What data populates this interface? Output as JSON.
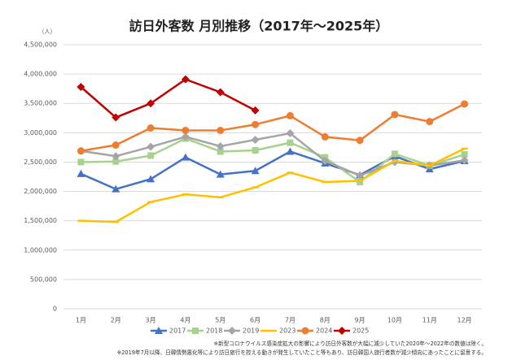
{
  "chart_data": {
    "type": "line",
    "title": "訪日外客数 月別推移（2017年～2025年）",
    "y_label": "（人）",
    "categories": [
      "1月",
      "2月",
      "3月",
      "4月",
      "5月",
      "6月",
      "7月",
      "8月",
      "9月",
      "10月",
      "11月",
      "12月"
    ],
    "series": [
      {
        "name": "2017",
        "color": "#4472c4",
        "marker": "triangle",
        "values": [
          2300000,
          2040000,
          2210000,
          2580000,
          2290000,
          2350000,
          2680000,
          2480000,
          2280000,
          2600000,
          2380000,
          2520000
        ]
      },
      {
        "name": "2018",
        "color": "#a9d18e",
        "marker": "square",
        "values": [
          2500000,
          2510000,
          2610000,
          2900000,
          2680000,
          2700000,
          2830000,
          2580000,
          2160000,
          2640000,
          2440000,
          2630000
        ]
      },
      {
        "name": "2019",
        "color": "#a5a5a5",
        "marker": "diamond",
        "values": [
          2690000,
          2600000,
          2760000,
          2930000,
          2770000,
          2880000,
          2990000,
          2520000,
          2270000,
          2500000,
          2440000,
          2530000
        ]
      },
      {
        "name": "2023",
        "color": "#ffc000",
        "marker": "dash",
        "values": [
          1500000,
          1480000,
          1820000,
          1950000,
          1900000,
          2070000,
          2320000,
          2160000,
          2180000,
          2520000,
          2440000,
          2730000
        ]
      },
      {
        "name": "2024",
        "color": "#ed7d31",
        "marker": "circle",
        "values": [
          2690000,
          2790000,
          3080000,
          3040000,
          3040000,
          3140000,
          3290000,
          2930000,
          2870000,
          3310000,
          3190000,
          3490000
        ]
      },
      {
        "name": "2025",
        "color": "#c00000",
        "marker": "diamond",
        "values": [
          3780000,
          3260000,
          3500000,
          3910000,
          3690000,
          3380000,
          null,
          null,
          null,
          null,
          null,
          null
        ]
      }
    ],
    "ylim": [
      0,
      4500000
    ],
    "yticks": [
      0,
      {
        "value": 500000,
        "label": "500,000"
      },
      {
        "value": 1000000,
        "label": "1,000,000"
      },
      {
        "value": 1500000,
        "label": "1,500,000"
      },
      {
        "value": 2000000,
        "label": "2,000,000"
      },
      {
        "value": 2500000,
        "label": "2,500,000"
      },
      {
        "value": 3000000,
        "label": "3,000,000"
      },
      {
        "value": 3500000,
        "label": "3,500,000"
      },
      {
        "value": 4000000,
        "label": "4,000,000"
      },
      {
        "value": 4500000,
        "label": "4,500,000"
      }
    ],
    "grid": true,
    "notes": [
      "※新型コロナウイルス感染症拡大の影響により訪日外客数が大幅に減少していた2020年～2022年の数値は除く。",
      "※2019年7月以降、日韓情勢悪化等により訪日旅行を控える動きが発生していたこと等もあり、訪日韓国人旅行者数が減少傾向にあったことに留意する。"
    ]
  }
}
